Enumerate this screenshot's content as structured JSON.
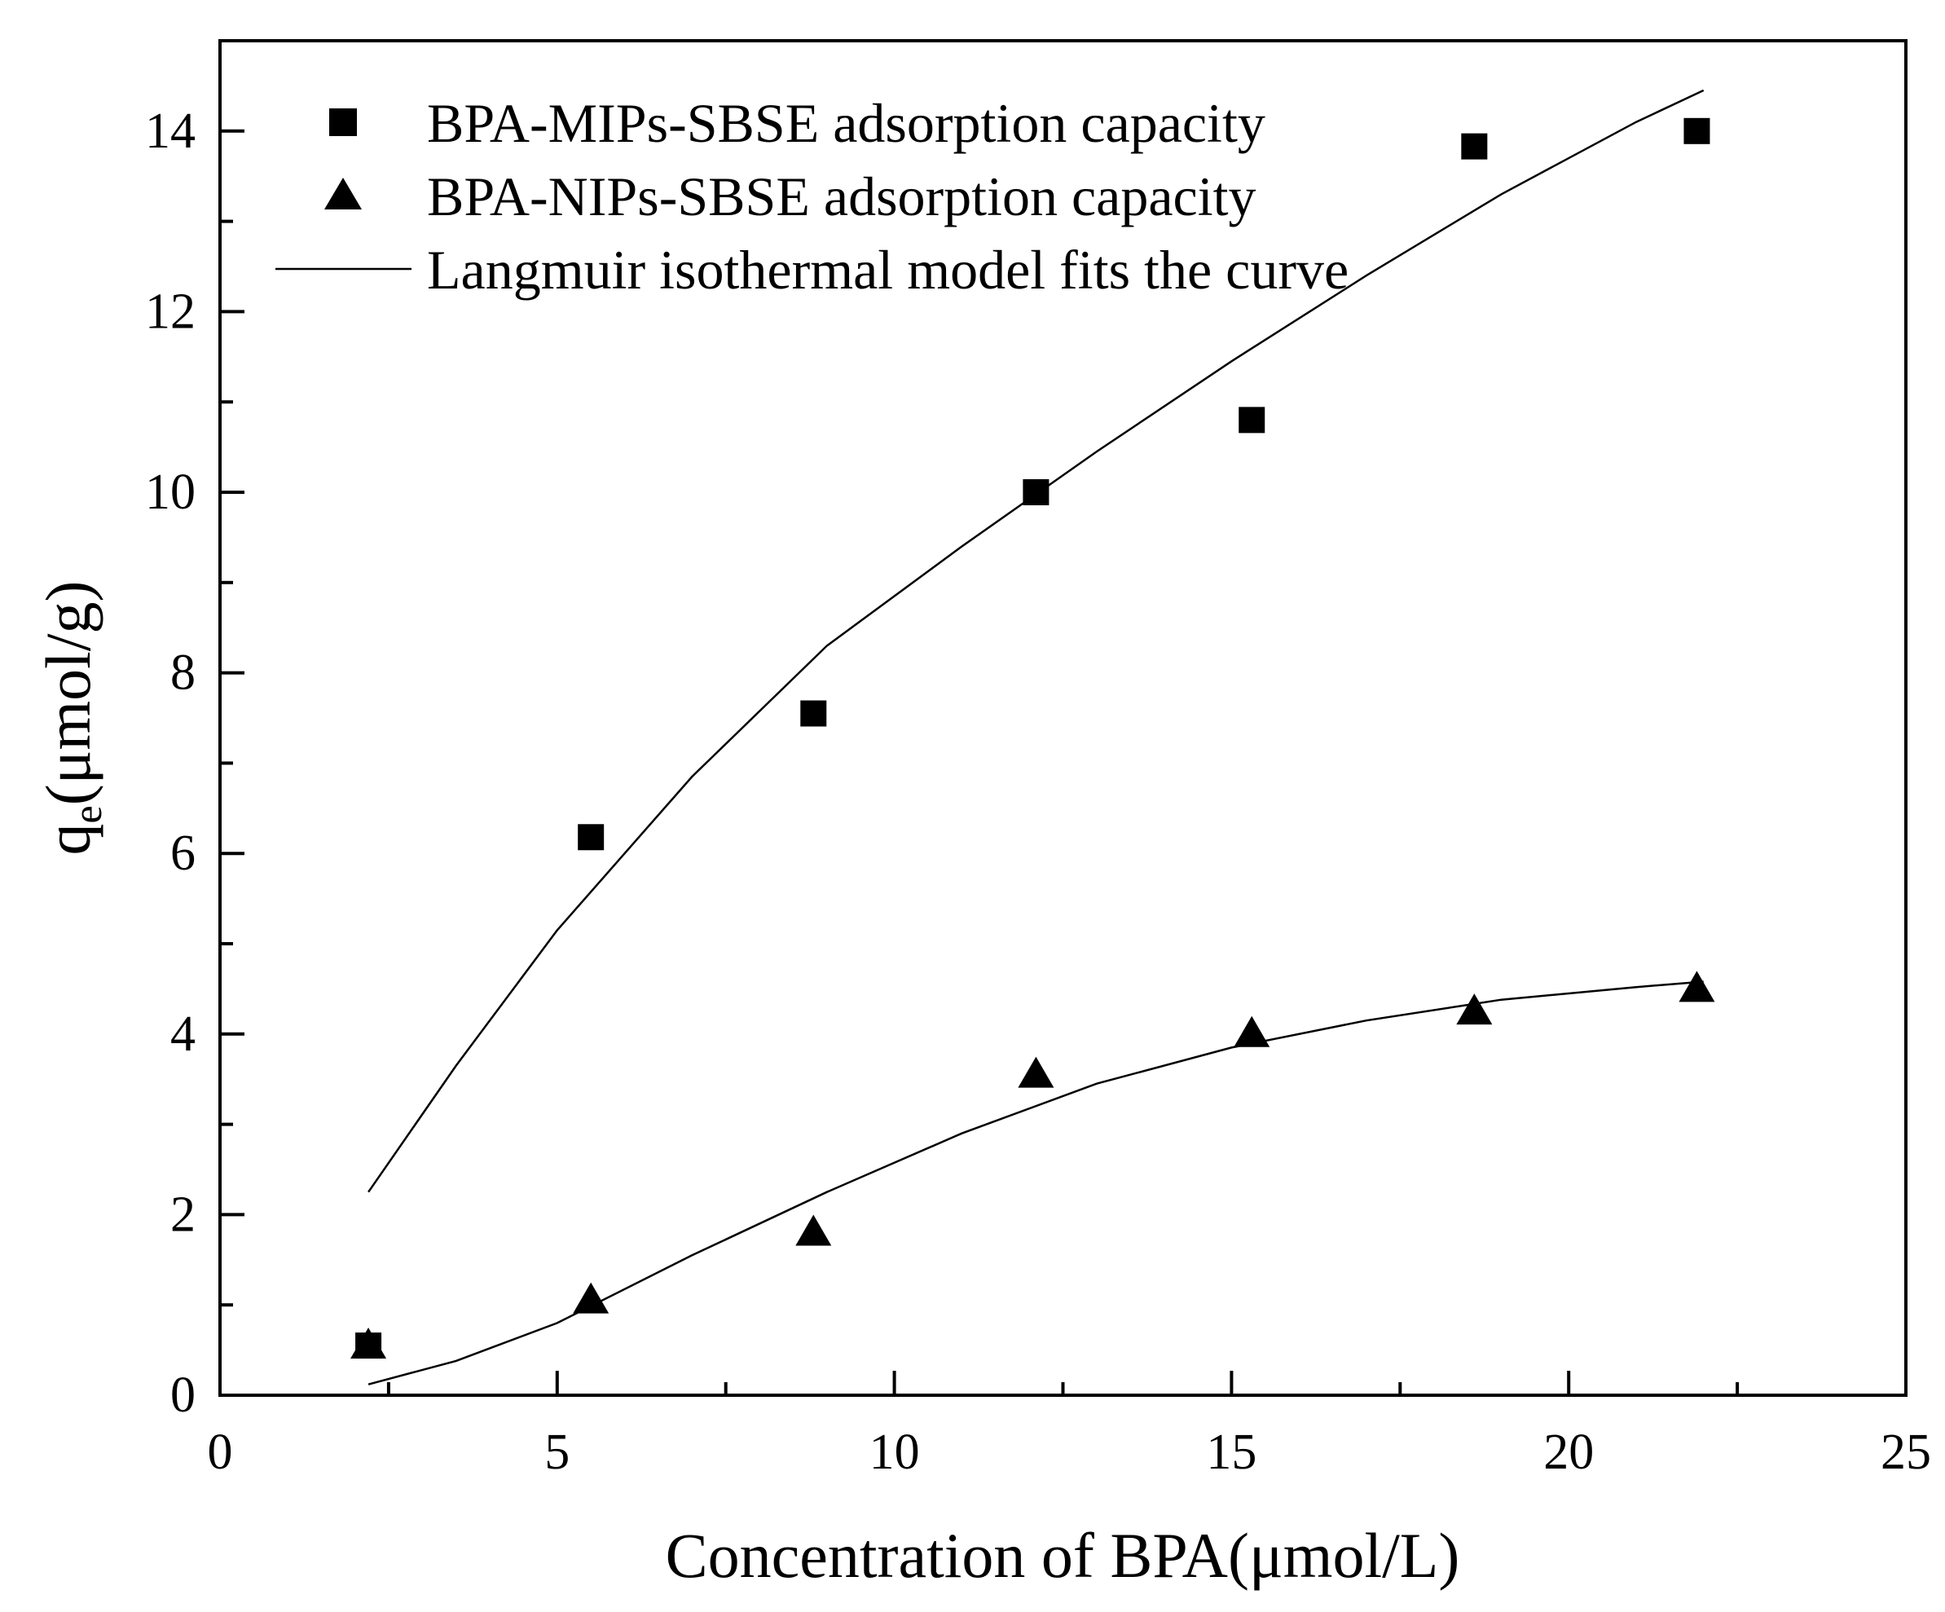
{
  "chart_data": {
    "type": "scatter",
    "title": "",
    "xlabel": "Concentration of BPA(μmol/L)",
    "ylabel_main": "q",
    "ylabel_sub": "e",
    "ylabel_unit": "(μmol/g)",
    "xlim": [
      0,
      25
    ],
    "ylim": [
      0,
      15
    ],
    "xticks": [
      0,
      5,
      10,
      15,
      20,
      25
    ],
    "yticks": [
      0,
      2,
      4,
      6,
      8,
      10,
      12,
      14
    ],
    "grid": false,
    "legend_position": "top-left",
    "legend": [
      {
        "label_a": "BPA-MIPs-SBSE",
        "label_b": "adsorption capacity",
        "marker": "square"
      },
      {
        "label_a": "BPA-NIPs-SBSE",
        "label_b": "adsorption capacity",
        "marker": "triangle"
      },
      {
        "label_a": "Langmuir",
        "label_b": "isothermal model fits the curve",
        "marker": "line"
      }
    ],
    "series": [
      {
        "name": "BPA-MIPs-SBSE adsorption capacity",
        "marker": "square",
        "x": [
          2.2,
          5.5,
          8.8,
          12.1,
          15.3,
          18.6,
          21.9
        ],
        "y": [
          0.55,
          6.18,
          7.55,
          10.0,
          10.8,
          13.83,
          14.0
        ]
      },
      {
        "name": "BPA-NIPs-SBSE adsorption capacity",
        "marker": "triangle",
        "x": [
          2.2,
          5.5,
          8.8,
          12.1,
          15.3,
          18.6,
          21.9
        ],
        "y": [
          0.55,
          1.05,
          1.8,
          3.55,
          4.0,
          4.25,
          4.5
        ]
      }
    ],
    "fit_curves": [
      {
        "name": "Langmuir fit (MIPs)",
        "x": [
          2.2,
          3.5,
          5.0,
          7.0,
          9.0,
          11.0,
          13.0,
          15.0,
          17.0,
          19.0,
          21.0,
          22.0
        ],
        "y": [
          2.25,
          3.65,
          5.15,
          6.85,
          8.3,
          9.4,
          10.45,
          11.45,
          12.4,
          13.3,
          14.1,
          14.45
        ]
      },
      {
        "name": "Langmuir fit (NIPs)",
        "x": [
          2.2,
          3.5,
          5.0,
          7.0,
          9.0,
          11.0,
          13.0,
          15.0,
          17.0,
          19.0,
          21.0,
          22.0
        ],
        "y": [
          0.12,
          0.38,
          0.8,
          1.55,
          2.25,
          2.9,
          3.45,
          3.85,
          4.15,
          4.38,
          4.52,
          4.58
        ]
      }
    ]
  }
}
